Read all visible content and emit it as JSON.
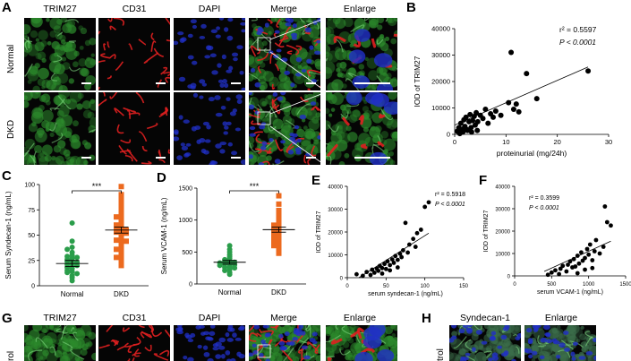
{
  "panels": {
    "A": "A",
    "B": "B",
    "C": "C",
    "D": "D",
    "E": "E",
    "F": "F",
    "G": "G",
    "H": "H"
  },
  "panelA": {
    "columns": [
      "TRIM27",
      "CD31",
      "DAPI",
      "Merge",
      "Enlarge"
    ],
    "rows": [
      "Normal",
      "DKD"
    ],
    "colors": {
      "trim27": "#3aa33a",
      "cd31": "#e02020",
      "dapi": "#2030c8"
    }
  },
  "panelG": {
    "columns": [
      "TRIM27",
      "CD31",
      "DAPI",
      "Merge",
      "Enlarge"
    ],
    "row_partial": "rol"
  },
  "panelH": {
    "columns": [
      "Syndecan-1",
      "Enlarge"
    ],
    "row_partial": "trol"
  },
  "chart_data": [
    {
      "id": "B",
      "type": "scatter",
      "xlabel": "proteinurial (mg/24h)",
      "ylabel": "IOD of TRIM27",
      "xlim": [
        0,
        30
      ],
      "ylim": [
        0,
        40000
      ],
      "xticks": [
        "0",
        "10",
        "20",
        "30"
      ],
      "yticks": [
        "0",
        "10000",
        "20000",
        "30000",
        "40000"
      ],
      "annotations": [
        "r² = 0.5597",
        "P < 0.0001"
      ],
      "points": [
        [
          0.5,
          1200
        ],
        [
          0.8,
          2500
        ],
        [
          1,
          800
        ],
        [
          1.2,
          4200
        ],
        [
          1.5,
          2000
        ],
        [
          1.8,
          5500
        ],
        [
          2,
          3000
        ],
        [
          2.2,
          6500
        ],
        [
          2.5,
          1500
        ],
        [
          2.8,
          4800
        ],
        [
          3,
          7500
        ],
        [
          3.2,
          2600
        ],
        [
          3.5,
          5200
        ],
        [
          3.8,
          6800
        ],
        [
          4,
          3500
        ],
        [
          4.2,
          8200
        ],
        [
          4.5,
          4800
        ],
        [
          5,
          7200
        ],
        [
          5.5,
          6000
        ],
        [
          6,
          9500
        ],
        [
          6.5,
          4200
        ],
        [
          7,
          7800
        ],
        [
          7.5,
          6500
        ],
        [
          8,
          8800
        ],
        [
          9,
          7200
        ],
        [
          10.5,
          12000
        ],
        [
          11,
          31000
        ],
        [
          11.5,
          9500
        ],
        [
          12,
          11500
        ],
        [
          12.5,
          8500
        ],
        [
          14,
          23000
        ],
        [
          16,
          13500
        ],
        [
          26,
          24000
        ],
        [
          1,
          300
        ],
        [
          1.6,
          900
        ],
        [
          2.4,
          1800
        ],
        [
          3.3,
          900
        ],
        [
          4.4,
          1500
        ]
      ],
      "fit_line": [
        [
          0,
          3500
        ],
        [
          26,
          25500
        ]
      ]
    },
    {
      "id": "C",
      "type": "scatter",
      "ylabel": "Serum Syndecan-1 (ng/mL)",
      "ylim": [
        0,
        100
      ],
      "yticks": [
        "0",
        "25",
        "50",
        "75",
        "100"
      ],
      "categories": [
        "Normal",
        "DKD"
      ],
      "significance": "***",
      "series": [
        {
          "color": "#2a9d4a",
          "mean": 22,
          "sem": 3,
          "values": [
            62,
            44,
            38,
            36,
            33,
            30,
            29,
            28,
            27,
            26,
            25,
            24,
            23,
            22,
            21,
            20,
            19,
            18,
            17,
            15,
            14,
            13,
            12,
            10,
            8,
            5
          ]
        },
        {
          "color": "#ec6a1f",
          "mean": 55,
          "sem": 3,
          "values": [
            98,
            90,
            85,
            80,
            75,
            72,
            70,
            68,
            66,
            64,
            62,
            60,
            58,
            57,
            56,
            55,
            54,
            53,
            52,
            50,
            48,
            46,
            45,
            44,
            42,
            40,
            38,
            36,
            34,
            30,
            28,
            25,
            20
          ]
        }
      ]
    },
    {
      "id": "D",
      "type": "scatter",
      "ylabel": "Serum VCAM-1 (ng/mL)",
      "ylim": [
        0,
        1500
      ],
      "yticks": [
        "0",
        "500",
        "1000",
        "1500"
      ],
      "categories": [
        "Normal",
        "DKD"
      ],
      "significance": "***",
      "series": [
        {
          "color": "#2a9d4a",
          "mean": 340,
          "sem": 30,
          "values": [
            600,
            540,
            500,
            460,
            430,
            400,
            380,
            360,
            350,
            340,
            330,
            320,
            310,
            300,
            290,
            270,
            260,
            250,
            230,
            210,
            180,
            150
          ]
        },
        {
          "color": "#ec6a1f",
          "mean": 850,
          "sem": 40,
          "values": [
            1380,
            1250,
            1150,
            1100,
            1060,
            1020,
            980,
            950,
            920,
            900,
            880,
            860,
            840,
            820,
            800,
            780,
            760,
            740,
            720,
            700,
            680,
            650,
            620,
            600,
            560,
            520,
            480
          ]
        }
      ]
    },
    {
      "id": "E",
      "type": "scatter",
      "xlabel": "serum syndecan-1 (ng/mL)",
      "ylabel": "IOD of TRIM27",
      "xlim": [
        0,
        150
      ],
      "ylim": [
        0,
        40000
      ],
      "xticks": [
        "0",
        "50",
        "100",
        "150"
      ],
      "yticks": [
        "0",
        "10000",
        "20000",
        "30000",
        "40000"
      ],
      "annotations": [
        "r² = 0.5918",
        "P < 0.0001"
      ],
      "points": [
        [
          12,
          1500
        ],
        [
          20,
          800
        ],
        [
          25,
          2500
        ],
        [
          30,
          1200
        ],
        [
          32,
          3500
        ],
        [
          35,
          2200
        ],
        [
          38,
          4000
        ],
        [
          40,
          3000
        ],
        [
          42,
          5200
        ],
        [
          45,
          4200
        ],
        [
          48,
          6000
        ],
        [
          50,
          3800
        ],
        [
          52,
          7200
        ],
        [
          55,
          5500
        ],
        [
          58,
          8000
        ],
        [
          60,
          6500
        ],
        [
          62,
          9500
        ],
        [
          65,
          7800
        ],
        [
          68,
          10500
        ],
        [
          70,
          9000
        ],
        [
          72,
          12000
        ],
        [
          75,
          24000
        ],
        [
          78,
          11000
        ],
        [
          80,
          14500
        ],
        [
          85,
          17000
        ],
        [
          88,
          13500
        ],
        [
          90,
          19500
        ],
        [
          95,
          21000
        ],
        [
          100,
          31000
        ],
        [
          105,
          33000
        ],
        [
          45,
          1800
        ],
        [
          55,
          3200
        ],
        [
          65,
          4500
        ]
      ],
      "fit_line": [
        [
          15,
          0
        ],
        [
          105,
          19500
        ]
      ]
    },
    {
      "id": "F",
      "type": "scatter",
      "xlabel": "serum VCAM-1 (ng/mL)",
      "ylabel": "IOD of TRIM27",
      "xlim": [
        0,
        1500
      ],
      "ylim": [
        0,
        40000
      ],
      "xticks": [
        "0",
        "500",
        "1000",
        "1500"
      ],
      "yticks": [
        "0",
        "10000",
        "20000",
        "30000",
        "40000"
      ],
      "annotations": [
        "r² = 0.3599",
        "P < 0.0001"
      ],
      "points": [
        [
          450,
          500
        ],
        [
          500,
          1500
        ],
        [
          550,
          2500
        ],
        [
          600,
          800
        ],
        [
          620,
          3200
        ],
        [
          650,
          4500
        ],
        [
          700,
          2000
        ],
        [
          720,
          5000
        ],
        [
          750,
          6500
        ],
        [
          780,
          3800
        ],
        [
          800,
          7500
        ],
        [
          820,
          4200
        ],
        [
          850,
          9000
        ],
        [
          870,
          5500
        ],
        [
          900,
          10500
        ],
        [
          920,
          6800
        ],
        [
          950,
          8000
        ],
        [
          980,
          12000
        ],
        [
          1000,
          9500
        ],
        [
          1020,
          14000
        ],
        [
          1050,
          7000
        ],
        [
          1080,
          11000
        ],
        [
          1100,
          16000
        ],
        [
          1150,
          10000
        ],
        [
          1200,
          13000
        ],
        [
          1220,
          31000
        ],
        [
          1250,
          24000
        ],
        [
          1300,
          22500
        ],
        [
          850,
          1200
        ],
        [
          950,
          2800
        ],
        [
          1050,
          3500
        ]
      ],
      "fit_line": [
        [
          400,
          2000
        ],
        [
          1300,
          15500
        ]
      ]
    }
  ]
}
